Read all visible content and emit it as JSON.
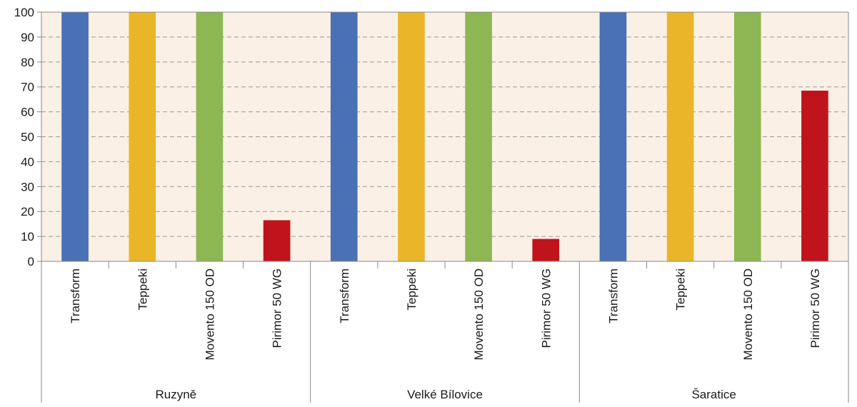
{
  "chart_data": {
    "type": "bar",
    "title": "",
    "xlabel": "",
    "ylabel": "",
    "ylim": [
      0,
      100
    ],
    "yticks": [
      0,
      10,
      20,
      30,
      40,
      50,
      60,
      70,
      80,
      90,
      100
    ],
    "grid": true,
    "legend": "none",
    "groups": [
      {
        "name": "Ruzyně",
        "categories": [
          "Transform",
          "Teppeki",
          "Movento 150 OD",
          "Pirimor 50 WG"
        ],
        "values": [
          100,
          100,
          100,
          16.5
        ]
      },
      {
        "name": "Velké Bílovice",
        "categories": [
          "Transform",
          "Teppeki",
          "Movento 150 OD",
          "Pirimor 50 WG"
        ],
        "values": [
          100,
          100,
          100,
          9
        ]
      },
      {
        "name": "Šaratice",
        "categories": [
          "Transform",
          "Teppeki",
          "Movento 150 OD",
          "Pirimor 50 WG"
        ],
        "values": [
          100,
          100,
          100,
          68.5
        ]
      }
    ],
    "colors": {
      "Transform": "#4a70b5",
      "Teppeki": "#ebb52a",
      "Movento 150 OD": "#8db752",
      "Pirimor 50 WG": "#c0141c"
    },
    "plot_background": "#fbf0e6",
    "grid_color": "#9a9a9a",
    "axis_color": "#8a8a8a"
  }
}
